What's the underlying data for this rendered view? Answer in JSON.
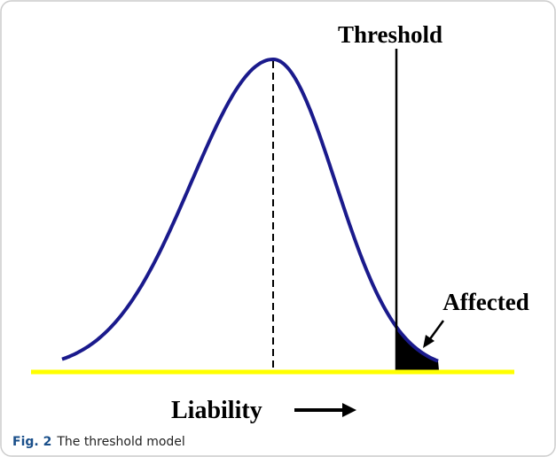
{
  "labels": {
    "threshold": "Threshold",
    "affected": "Affected",
    "axis": "Liability"
  },
  "caption": {
    "label": "Fig. 2",
    "text": "The threshold model"
  }
}
